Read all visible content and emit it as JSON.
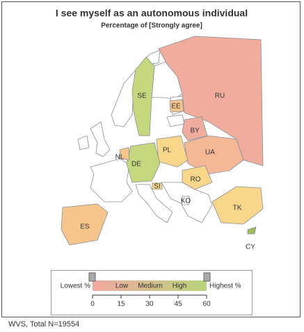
{
  "title": "I see myself as an autonomous individual",
  "subtitle": "Percentage of [Strongly agree]",
  "countries": [
    {
      "label": "RU",
      "color": "#f0ac9c"
    },
    {
      "label": "SE",
      "color": "#c5d87e"
    },
    {
      "label": "EE",
      "color": "#f6c58c"
    },
    {
      "label": "BY",
      "color": "#f0ac9c"
    },
    {
      "label": "UA",
      "color": "#f4b896"
    },
    {
      "label": "PL",
      "color": "#f8d68a"
    },
    {
      "label": "DE",
      "color": "#c5d87e"
    },
    {
      "label": "NL",
      "color": "#f6c58c"
    },
    {
      "label": "RO",
      "color": "#f8d68a"
    },
    {
      "label": "SI",
      "color": "#f8d68a"
    },
    {
      "label": "KO",
      "color": "#ffffff"
    },
    {
      "label": "TK",
      "color": "#f8d68a"
    },
    {
      "label": "ES",
      "color": "#f6c58c"
    },
    {
      "label": "CY",
      "color": "#9cbc5c"
    }
  ],
  "legend": {
    "lowest": "Lowest %",
    "highest": "Highest %",
    "low": "Low",
    "medium": "Medium",
    "high": "High",
    "low_color": "#f0a8a0",
    "high_color": "#b8d47a",
    "range": [
      0,
      60
    ],
    "ticks": [
      0,
      15,
      30,
      45,
      60
    ]
  },
  "footer": "WVS, Total N=19554"
}
